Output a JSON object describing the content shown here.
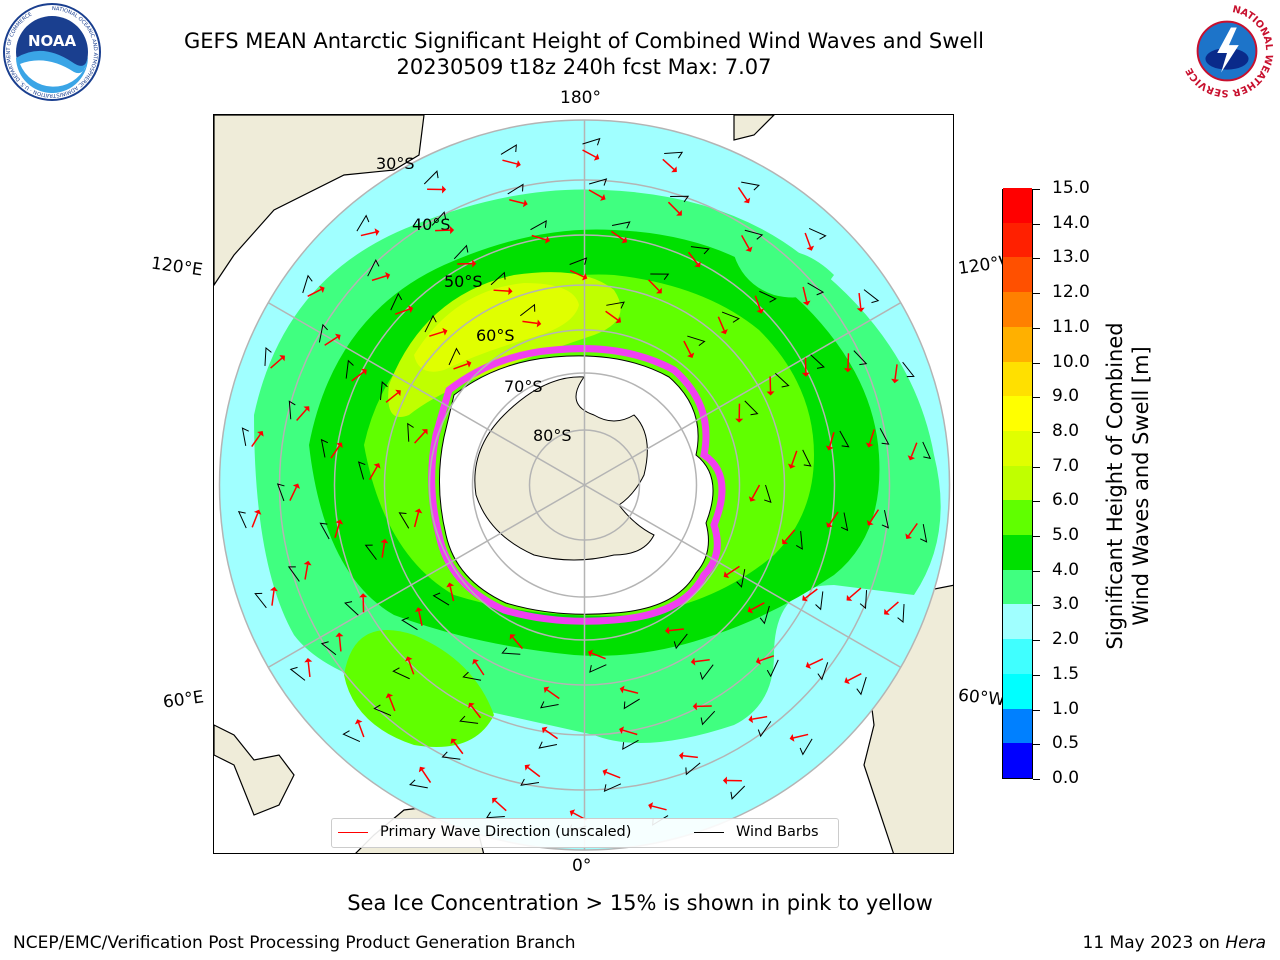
{
  "title": {
    "line1": "GEFS MEAN Antarctic Significant Height of Combined Wind Waves and Swell",
    "line2": "20230509 t18z 240h fcst   Max: 7.07"
  },
  "logos": {
    "noaa_text": "NOAA",
    "noaa_ring": "NATIONAL OCEANIC AND ATMOSPHERIC ADMINISTRATION · U.S. DEPARTMENT OF COMMERCE",
    "nws_ring": "NATIONAL WEATHER SERVICE"
  },
  "map": {
    "projection": "south polar stereographic",
    "lon_labels": {
      "top": "180°",
      "bottom": "0°",
      "left_upper": "120°E",
      "left_lower": "60°E",
      "right_upper": "120°W",
      "right_lower": "60°W"
    },
    "lat_labels": [
      "30°S",
      "40°S",
      "50°S",
      "60°S",
      "70°S",
      "80°S"
    ],
    "colors": {
      "land": "#efecd9",
      "ice_edge": "#f040f0",
      "wave_arrows": "#ff0000",
      "wind_barbs": "#000000",
      "gridlines": "#b4b4b4"
    }
  },
  "legend": {
    "primary_wave": "Primary Wave Direction (unscaled)",
    "wind_barbs": "Wind Barbs"
  },
  "colorbar": {
    "title_line1": "Significant Height of Combined",
    "title_line2": "Wind Waves and Swell [m]",
    "ticks": [
      "0.0",
      "0.5",
      "1.0",
      "1.5",
      "2.0",
      "3.0",
      "4.0",
      "5.0",
      "6.0",
      "7.0",
      "8.0",
      "9.0",
      "10.0",
      "11.0",
      "12.0",
      "13.0",
      "14.0",
      "15.0"
    ],
    "colors": [
      "#0000ff",
      "#0080ff",
      "#00ffff",
      "#40ffff",
      "#a0ffff",
      "#40ff80",
      "#00e000",
      "#60ff00",
      "#c0ff00",
      "#e0ff00",
      "#ffff00",
      "#ffe000",
      "#ffb000",
      "#ff8000",
      "#ff5000",
      "#ff2000",
      "#ff0000"
    ]
  },
  "footer": {
    "note": "Sea Ice Concentration > 15% is shown in pink to yellow",
    "credit": "NCEP/EMC/Verification Post Processing Product Generation Branch",
    "date": "11 May 2023 on",
    "machine": "Hera"
  }
}
